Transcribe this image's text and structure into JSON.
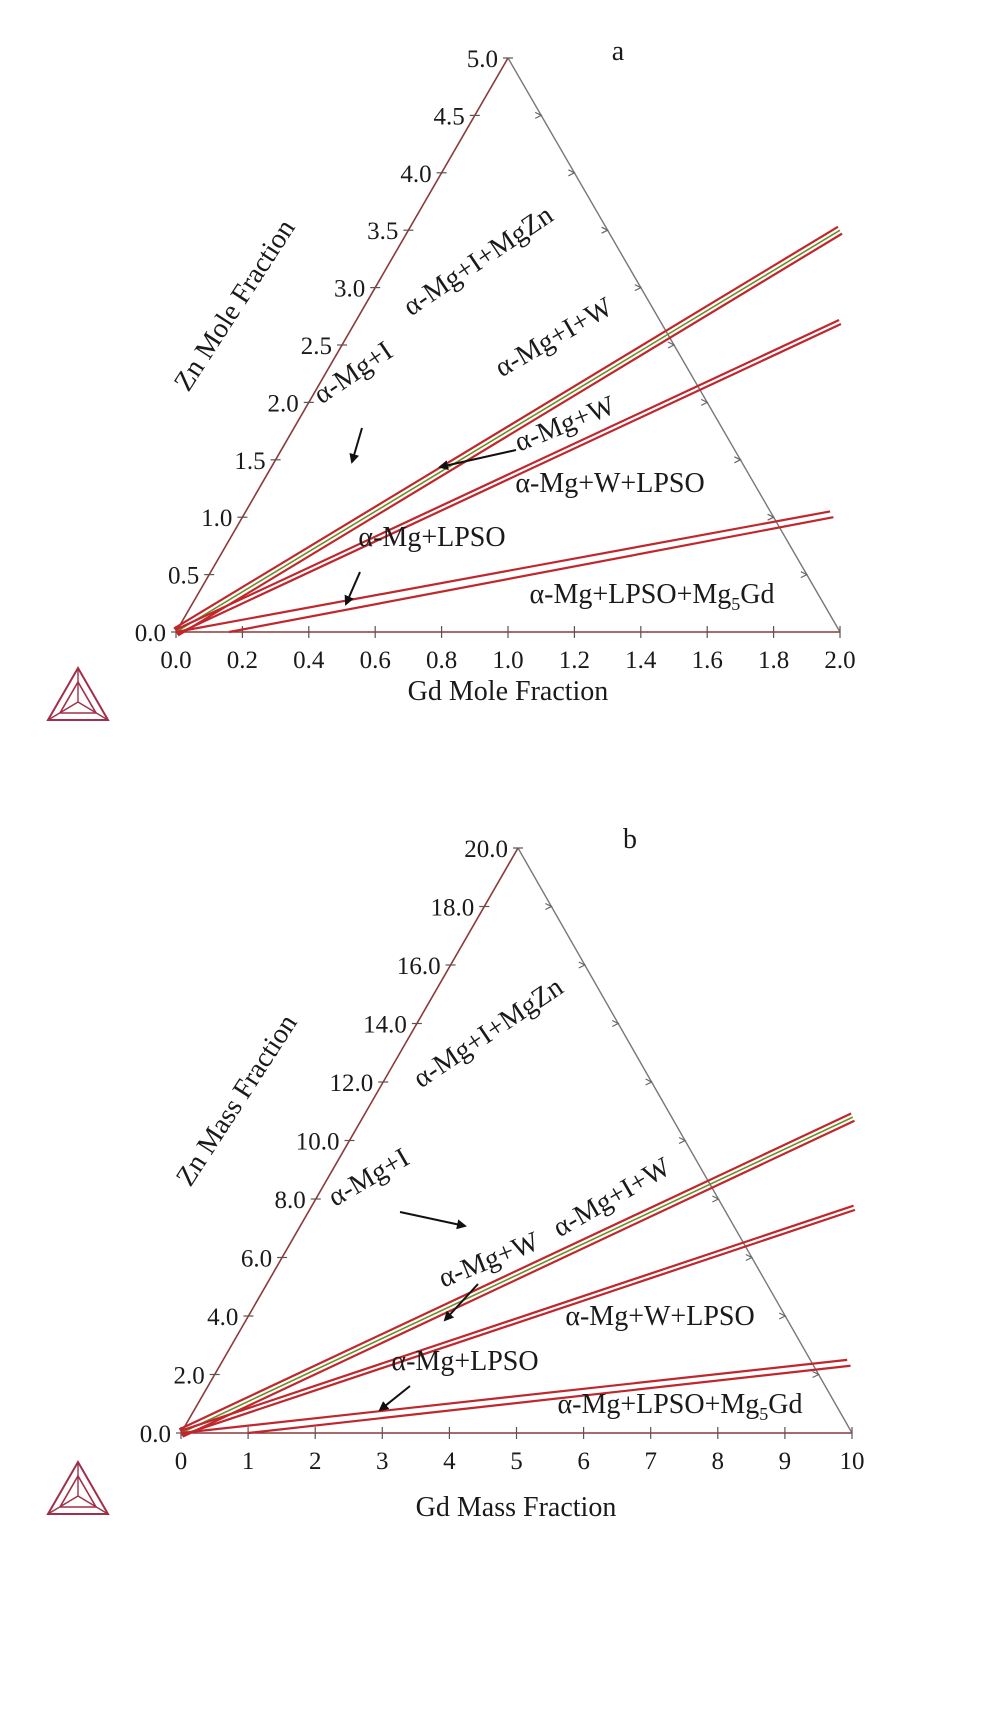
{
  "chart_data": [
    {
      "panel_label": "a",
      "type": "ternary-phase-diagram-section",
      "xlabel": "Gd Mole Fraction",
      "ylabel": "Zn Mole Fraction",
      "x_ticks": [
        "0.0",
        "0.2",
        "0.4",
        "0.6",
        "0.8",
        "1.0",
        "1.2",
        "1.4",
        "1.6",
        "1.8",
        "2.0"
      ],
      "y_ticks": [
        "0.0",
        "0.5",
        "1.0",
        "1.5",
        "2.0",
        "2.5",
        "3.0",
        "3.5",
        "4.0",
        "4.5",
        "5.0"
      ],
      "xlim": [
        0,
        2.0
      ],
      "ylim": [
        0,
        5.0
      ],
      "boundaries": [
        {
          "from": [
            0,
            0
          ],
          "to": [
            1.3,
            3.5
          ],
          "lines": 3,
          "green_center": true
        },
        {
          "from": [
            0,
            0
          ],
          "to": [
            1.46,
            2.7
          ],
          "lines": 2
        },
        {
          "from": [
            0,
            0
          ],
          "to": [
            1.76,
            1.05
          ],
          "lines": 1
        },
        {
          "from": [
            0.16,
            0
          ],
          "to": [
            1.78,
            1.0
          ],
          "lines": 1
        }
      ],
      "regions": [
        {
          "label": "α-Mg+I+MgZn",
          "rotated": true
        },
        {
          "label": "α-Mg+I+W",
          "rotated": true
        },
        {
          "label": "α-Mg+I",
          "rotated": true,
          "arrow": true
        },
        {
          "label": "α-Mg+W",
          "rotated": true,
          "arrow": true
        },
        {
          "label": "α-Mg+W+LPSO"
        },
        {
          "label": "α-Mg+LPSO",
          "arrow": true
        },
        {
          "label": "α-Mg+LPSO+Mg5Gd"
        }
      ]
    },
    {
      "panel_label": "b",
      "type": "ternary-phase-diagram-section",
      "xlabel": "Gd Mass Fraction",
      "ylabel": "Zn Mass Fraction",
      "x_ticks": [
        "0",
        "1",
        "2",
        "3",
        "4",
        "5",
        "6",
        "7",
        "8",
        "9",
        "10"
      ],
      "y_ticks": [
        "0.0",
        "2.0",
        "4.0",
        "6.0",
        "8.0",
        "10.0",
        "12.0",
        "14.0",
        "16.0",
        "18.0",
        "20.0"
      ],
      "xlim": [
        0,
        10
      ],
      "ylim": [
        0,
        20.0
      ],
      "boundaries": [
        {
          "from": [
            0,
            0
          ],
          "to": [
            7.3,
            10.8
          ],
          "lines": 3,
          "green_center": true
        },
        {
          "from": [
            0,
            0
          ],
          "to": [
            8.1,
            7.7
          ],
          "lines": 2
        },
        {
          "from": [
            0,
            0
          ],
          "to": [
            9.3,
            2.5
          ],
          "lines": 1
        },
        {
          "from": [
            1.0,
            0
          ],
          "to": [
            9.4,
            2.3
          ],
          "lines": 1
        }
      ],
      "regions": [
        {
          "label": "α-Mg+I+MgZn",
          "rotated": true
        },
        {
          "label": "α-Mg+I",
          "rotated": true,
          "arrow": true
        },
        {
          "label": "α-Mg+I+W",
          "rotated": true
        },
        {
          "label": "α-Mg+W",
          "rotated": true,
          "arrow": true
        },
        {
          "label": "α-Mg+W+LPSO"
        },
        {
          "label": "α-Mg+LPSO",
          "arrow": true
        },
        {
          "label": "α-Mg+LPSO+Mg5Gd"
        }
      ]
    }
  ],
  "colors": {
    "frame": "#8b3a3a",
    "frame_right": "#777777",
    "phase_line": "#c0272d",
    "green_line": "#6b8e23",
    "logo": "#a0304a",
    "text": "#1a1a1a"
  }
}
